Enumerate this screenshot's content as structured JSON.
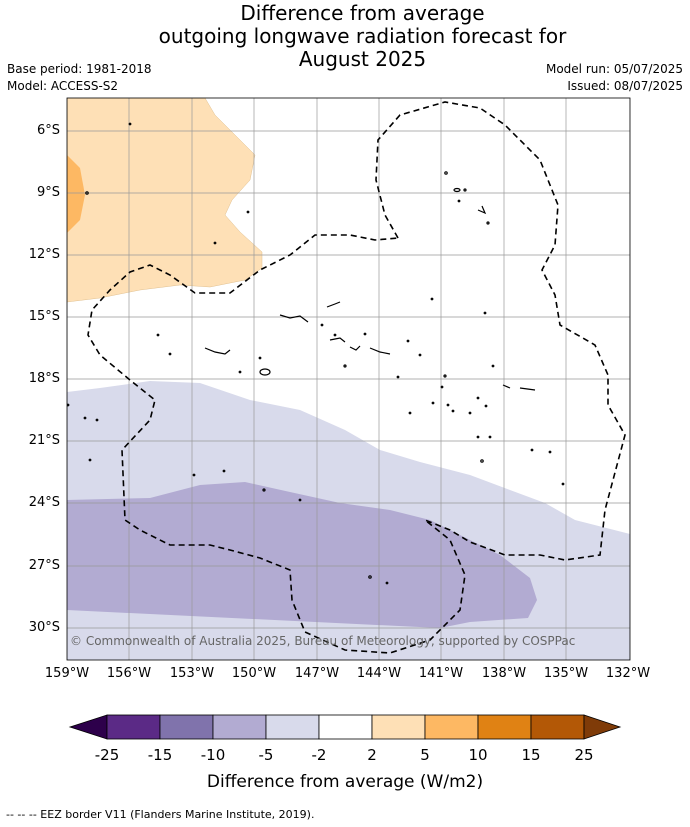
{
  "title": {
    "line1": "Difference from average",
    "line2": "outgoing longwave radiation forecast for",
    "line3": "August 2025"
  },
  "meta": {
    "base_period": "Base period: 1981-2018",
    "model": "Model: ACCESS-S2",
    "model_run": "Model run: 05/07/2025",
    "issued": "Issued: 08/07/2025"
  },
  "map": {
    "latitude_labels": [
      "6°S",
      "9°S",
      "12°S",
      "15°S",
      "18°S",
      "21°S",
      "24°S",
      "27°S",
      "30°S"
    ],
    "longitude_labels": [
      "159°W",
      "156°W",
      "153°W",
      "150°W",
      "147°W",
      "144°W",
      "141°W",
      "138°W",
      "135°W",
      "132°W"
    ],
    "copyright": "© Commonwealth of Australia 2025, Bureau of Meteorology, supported by COSPPac",
    "colors": {
      "strong_neg": "#5b2a86",
      "neg15": "#8073ac",
      "neg10": "#b2abd2",
      "neg5": "#d8daeb",
      "neutral": "#ffffff",
      "pos2": "#fee0b6",
      "pos5": "#fdb863",
      "pos10": "#e08214",
      "pos15": "#b35806",
      "over": "#7f3b08",
      "under": "#2d004b"
    }
  },
  "colorbar": {
    "ticks": [
      "-25",
      "-15",
      "-10",
      "-5",
      "-2",
      "2",
      "5",
      "10",
      "15",
      "25"
    ],
    "title": "Difference from average (W/m2)"
  },
  "footer": "--  --  -- EEZ border V11 (Flanders Marine Institute, 2019)."
}
